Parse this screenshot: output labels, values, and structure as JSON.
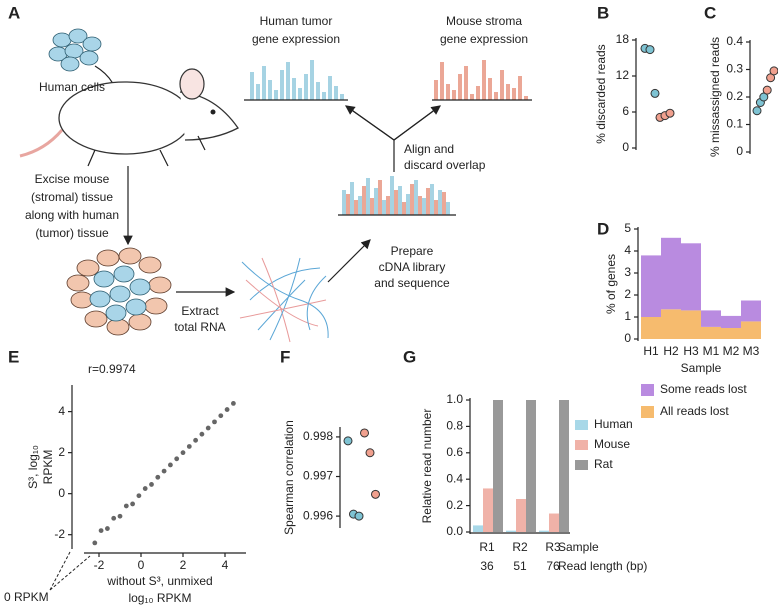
{
  "diagram": {
    "label": "A",
    "human_cells": "Human cells",
    "excise": [
      "Excise mouse",
      "(stromal) tissue",
      "along with human",
      "(tumor) tissue"
    ],
    "extract": [
      "Extract",
      "total RNA"
    ],
    "prepare": [
      "Prepare",
      "cDNA library",
      "and sequence"
    ],
    "align": [
      "Align and",
      "discard overlap"
    ],
    "human_expression": [
      "Human tumor",
      "gene expression"
    ],
    "mouse_expression": [
      "Mouse stroma",
      "gene expression"
    ]
  },
  "chart_data": [
    {
      "type": "strip",
      "label": "B",
      "ylabel": "% discarded reads",
      "ylim": [
        0,
        18
      ],
      "yticks": [
        0,
        6,
        12,
        18
      ],
      "series": [
        {
          "color": "#7ec3d3",
          "values": [
            16.6,
            16.4,
            9.1
          ]
        },
        {
          "color": "#f0a08e",
          "values": [
            5.1,
            5.4,
            5.8
          ]
        }
      ]
    },
    {
      "type": "strip",
      "label": "C",
      "ylabel": "% missassigned reads",
      "ylim": [
        0,
        0.4
      ],
      "yticks": [
        0,
        0.1,
        0.2,
        0.3,
        0.4
      ],
      "series": [
        {
          "color": "#7ec3d3",
          "values": [
            0.15,
            0.18,
            0.2
          ]
        },
        {
          "color": "#f0a08e",
          "values": [
            0.225,
            0.27,
            0.295
          ]
        }
      ]
    },
    {
      "type": "stacked_bar",
      "label": "D",
      "ylabel": "% of genes",
      "xlabel": "Sample",
      "categories": [
        "H1",
        "H2",
        "H3",
        "M1",
        "M2",
        "M3"
      ],
      "ylim": [
        0,
        5
      ],
      "yticks": [
        0,
        1,
        2,
        3,
        4,
        5
      ],
      "series": [
        {
          "name": "Some reads lost",
          "color": "#b98be0",
          "values": [
            2.8,
            3.25,
            3.05,
            0.75,
            0.55,
            0.95
          ]
        },
        {
          "name": "All reads lost",
          "color": "#f6bb6e",
          "values": [
            1.0,
            1.35,
            1.3,
            0.55,
            0.5,
            0.8
          ]
        }
      ]
    },
    {
      "type": "scatter",
      "label": "E",
      "annotation": "r=0.9974",
      "zero_label": "0 RPKM",
      "xlabel": [
        "without S³, unmixed",
        "log₁₀ RPKM"
      ],
      "ylabel": [
        "S³, log₁₀",
        "RPKM"
      ],
      "xlim": [
        -3,
        5
      ],
      "ylim": [
        -2.6,
        5.2
      ],
      "xticks": [
        -2,
        0,
        2,
        4
      ],
      "yticks": [
        -2,
        0,
        2,
        4
      ],
      "color": "#333333",
      "x": [
        -2.2,
        -1.9,
        -1.6,
        -1.3,
        -1,
        -0.7,
        -0.4,
        -0.1,
        0.2,
        0.5,
        0.8,
        1.1,
        1.4,
        1.7,
        2,
        2.3,
        2.6,
        2.9,
        3.2,
        3.5,
        3.8,
        4.1,
        4.4
      ],
      "y": [
        -2.4,
        -1.8,
        -1.7,
        -1.2,
        -1.1,
        -0.6,
        -0.5,
        -0.1,
        0.25,
        0.45,
        0.8,
        1.1,
        1.4,
        1.7,
        2,
        2.3,
        2.6,
        2.9,
        3.2,
        3.5,
        3.8,
        4.1,
        4.4
      ]
    },
    {
      "type": "strip",
      "label": "F",
      "ylabel": "Spearman correlation",
      "ylim": [
        0.99575,
        0.9982
      ],
      "yticks": [
        0.996,
        0.997,
        0.998
      ],
      "series": [
        {
          "color": "#7ec3d3",
          "values": [
            0.9979,
            0.99605,
            0.996
          ]
        },
        {
          "color": "#f0a08e",
          "values": [
            0.9981,
            0.9976,
            0.99655
          ]
        }
      ]
    },
    {
      "type": "grouped_bar",
      "label": "G",
      "ylabel": "Relative read number",
      "xlabel": "Sample",
      "read_length_label": "Read length (bp)",
      "read_lengths": [
        36,
        51,
        76
      ],
      "categories": [
        "R1",
        "R2",
        "R3"
      ],
      "ylim": [
        0,
        1
      ],
      "yticks": [
        {
          "value": 0,
          "label": "0.0"
        },
        0.2,
        0.4,
        0.6,
        0.8,
        {
          "value": 1,
          "label": "1.0"
        }
      ],
      "series": [
        {
          "name": "Human",
          "color": "#a8d8e8",
          "values": [
            0.05,
            0.01,
            0.01
          ]
        },
        {
          "name": "Mouse",
          "color": "#f0b2a8",
          "values": [
            0.33,
            0.25,
            0.14
          ]
        },
        {
          "name": "Rat",
          "color": "#999999",
          "values": [
            1,
            1,
            1
          ]
        }
      ]
    }
  ]
}
